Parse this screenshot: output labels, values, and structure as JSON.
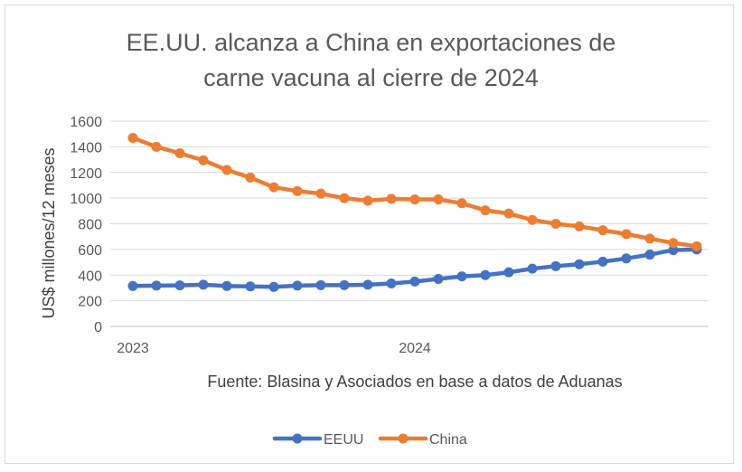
{
  "chart_data": {
    "type": "line",
    "title_lines": [
      "EE.UU. alcanza a China en exportaciones de",
      "carne vacuna al cierre de 2024"
    ],
    "ylabel": "US$ millones/12 meses",
    "ylim": [
      0,
      1600
    ],
    "yticks": [
      0,
      200,
      400,
      600,
      800,
      1000,
      1200,
      1400,
      1600
    ],
    "x_tick_labels": [
      {
        "index": 0,
        "label": "2023"
      },
      {
        "index": 12,
        "label": "2024"
      }
    ],
    "annotation": "Fuente: Blasina y Asociados en base a datos de Aduanas",
    "legend_position": "bottom",
    "grid": true,
    "series": [
      {
        "name": "EEUU",
        "color": "#4472c4",
        "values": [
          315,
          318,
          320,
          325,
          315,
          312,
          308,
          318,
          322,
          322,
          325,
          335,
          350,
          370,
          390,
          400,
          422,
          450,
          470,
          485,
          505,
          530,
          560,
          595,
          600
        ]
      },
      {
        "name": "China",
        "color": "#ed7d31",
        "values": [
          1470,
          1400,
          1350,
          1295,
          1220,
          1160,
          1085,
          1055,
          1035,
          1000,
          980,
          995,
          990,
          990,
          960,
          905,
          880,
          830,
          800,
          780,
          750,
          720,
          685,
          650,
          625
        ]
      }
    ]
  }
}
